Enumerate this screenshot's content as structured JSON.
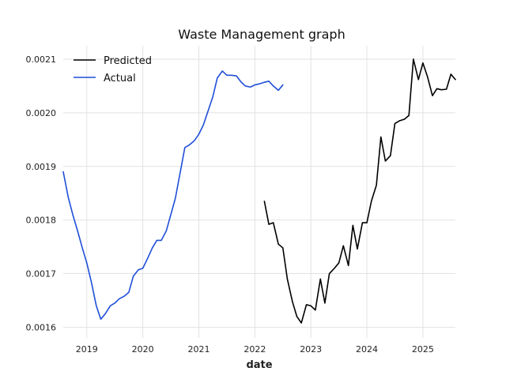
{
  "chart_data": {
    "type": "line",
    "title": "Waste Management graph",
    "xlabel": "date",
    "ylabel": "",
    "xlim": [
      2018.58,
      2025.58
    ],
    "ylim": [
      0.00158,
      0.002125
    ],
    "x_ticks": [
      2019,
      2020,
      2021,
      2022,
      2023,
      2024,
      2025
    ],
    "x_tick_labels": [
      "2019",
      "2020",
      "2021",
      "2022",
      "2023",
      "2024",
      "2025"
    ],
    "y_ticks": [
      0.0016,
      0.0017,
      0.0018,
      0.0019,
      0.002,
      0.0021
    ],
    "y_tick_labels": [
      "0.0016",
      "0.0017",
      "0.0018",
      "0.0019",
      "0.0020",
      "0.0021"
    ],
    "grid": true,
    "legend_position": "top-left",
    "series": [
      {
        "name": "Predicted",
        "color": "#000000",
        "x": [
          2022.17,
          2022.25,
          2022.33,
          2022.42,
          2022.5,
          2022.58,
          2022.67,
          2022.75,
          2022.83,
          2022.92,
          2023.0,
          2023.08,
          2023.17,
          2023.25,
          2023.33,
          2023.42,
          2023.5,
          2023.58,
          2023.67,
          2023.75,
          2023.83,
          2023.92,
          2024.0,
          2024.08,
          2024.17,
          2024.25,
          2024.33,
          2024.42,
          2024.5,
          2024.58,
          2024.67,
          2024.75,
          2024.83,
          2024.92,
          2025.0,
          2025.08,
          2025.17,
          2025.25,
          2025.33,
          2025.42,
          2025.5,
          2025.58
        ],
        "values": [
          0.001835,
          0.001792,
          0.001795,
          0.001755,
          0.001748,
          0.00169,
          0.001648,
          0.00162,
          0.001608,
          0.001642,
          0.00164,
          0.001632,
          0.00169,
          0.001645,
          0.0017,
          0.00171,
          0.00172,
          0.001752,
          0.001715,
          0.00179,
          0.001746,
          0.001795,
          0.001795,
          0.001835,
          0.001865,
          0.001955,
          0.00191,
          0.00192,
          0.00198,
          0.001985,
          0.001988,
          0.001995,
          0.0021,
          0.002062,
          0.002093,
          0.002068,
          0.002032,
          0.002045,
          0.002043,
          0.002044,
          0.002072,
          0.002062
        ]
      },
      {
        "name": "Actual",
        "color": "#1f4fd8",
        "x": [
          2018.58,
          2018.67,
          2018.75,
          2018.83,
          2018.92,
          2019.0,
          2019.08,
          2019.17,
          2019.25,
          2019.33,
          2019.42,
          2019.5,
          2019.58,
          2019.67,
          2019.75,
          2019.83,
          2019.92,
          2020.0,
          2020.08,
          2020.17,
          2020.25,
          2020.33,
          2020.42,
          2020.5,
          2020.58,
          2020.67,
          2020.75,
          2020.83,
          2020.92,
          2021.0,
          2021.08,
          2021.17,
          2021.25,
          2021.33,
          2021.42,
          2021.5,
          2021.58,
          2021.67,
          2021.75,
          2021.83,
          2021.92,
          2022.0,
          2022.08,
          2022.17,
          2022.25,
          2022.33,
          2022.42,
          2022.5
        ],
        "values": [
          0.00189,
          0.001842,
          0.00181,
          0.001782,
          0.001748,
          0.00172,
          0.001685,
          0.00164,
          0.001615,
          0.001625,
          0.00164,
          0.001645,
          0.001653,
          0.001658,
          0.001665,
          0.001695,
          0.001707,
          0.00171,
          0.001727,
          0.001748,
          0.001762,
          0.001762,
          0.00178,
          0.00181,
          0.00184,
          0.00189,
          0.001935,
          0.00194,
          0.001948,
          0.00196,
          0.001977,
          0.002005,
          0.00203,
          0.002065,
          0.002078,
          0.00207,
          0.00207,
          0.002069,
          0.002058,
          0.00205,
          0.002048,
          0.002052,
          0.002054,
          0.002057,
          0.002059,
          0.00205,
          0.002042,
          0.002052
        ]
      }
    ]
  }
}
